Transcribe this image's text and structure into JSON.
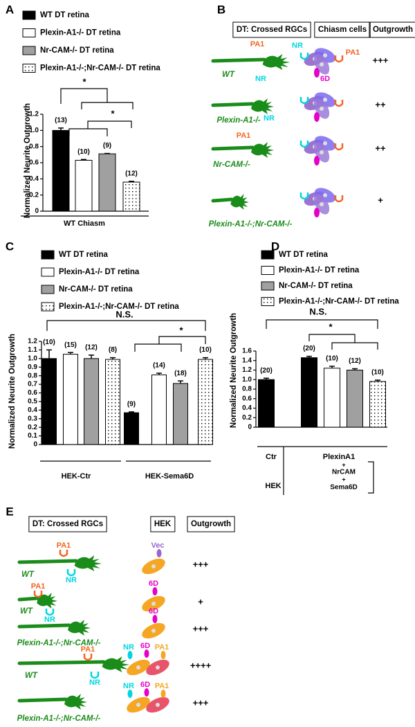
{
  "chart_data": [
    {
      "panel": "A",
      "type": "bar",
      "ylabel": "Normalized Neurite Outgrowth",
      "categories": [
        "WT Chiasm"
      ],
      "ylim": [
        0,
        1.2
      ],
      "yticks": [
        0,
        0.2,
        0.4,
        0.6,
        0.8,
        {
          "value": 1,
          "label": "1.0"
        },
        1.2
      ],
      "series": [
        {
          "name": "WT DT retina",
          "color": "#000000",
          "values": [
            1.0
          ],
          "errors": [
            0.03
          ],
          "n_labels": [
            "(13)"
          ]
        },
        {
          "name": "Plexin-A1-/- DT retina",
          "color": "#ffffff",
          "values": [
            0.63
          ],
          "errors": [
            0.01
          ],
          "n_labels": [
            "(10)"
          ]
        },
        {
          "name": "Nr-CAM-/- DT retina",
          "color": "#a0a0a0",
          "values": [
            0.71
          ],
          "errors": [
            0.005
          ],
          "n_labels": [
            "(9)"
          ]
        },
        {
          "name": "Plexin-A1-/-;Nr-CAM-/- DT retina",
          "color": "#ffffff",
          "pattern": "dots",
          "values": [
            0.36
          ],
          "errors": [
            0.01
          ],
          "n_labels": [
            "(12)"
          ]
        }
      ],
      "annotations": [
        "*",
        "*"
      ]
    },
    {
      "panel": "C",
      "type": "bar",
      "ylabel": "Normalized Neurite Outgrowth",
      "categories": [
        "HEK-Ctr",
        "HEK-Sema6D"
      ],
      "ylim": [
        0,
        1.2
      ],
      "yticks": [
        0,
        0.1,
        0.2,
        0.3,
        0.4,
        0.5,
        0.6,
        0.7,
        0.8,
        0.9,
        {
          "value": 1,
          "label": "1.0"
        },
        1.1,
        1.2
      ],
      "series": [
        {
          "name": "WT DT retina",
          "color": "#000000",
          "values": [
            1.0,
            0.37
          ],
          "errors": [
            0.1,
            0.01
          ],
          "n_labels": [
            "(10)",
            "(9)"
          ]
        },
        {
          "name": "Plexin-A1-/-  DT retina",
          "color": "#ffffff",
          "values": [
            1.05,
            0.81
          ],
          "errors": [
            0.02,
            0.02
          ],
          "n_labels": [
            "(15)",
            "(14)"
          ]
        },
        {
          "name": "Nr-CAM-/- DT retina",
          "color": "#a0a0a0",
          "values": [
            1.0,
            0.71
          ],
          "errors": [
            0.04,
            0.03
          ],
          "n_labels": [
            "(12)",
            "(18)"
          ]
        },
        {
          "name": "Plexin-A1-/-;Nr-CAM-/- DT retina",
          "color": "#ffffff",
          "pattern": "dots",
          "values": [
            0.99,
            0.99
          ],
          "errors": [
            0.02,
            0.02
          ],
          "n_labels": [
            "(8)",
            "(10)"
          ]
        }
      ],
      "annotations": [
        "N.S.",
        "*"
      ]
    },
    {
      "panel": "D",
      "type": "bar",
      "ylabel": "Normalized Neurite Outgrowth",
      "categories": [
        "Ctr",
        "PlexinA1"
      ],
      "ylim": [
        0,
        1.6
      ],
      "yticks": [
        0,
        0.2,
        0.4,
        0.6,
        0.8,
        {
          "value": 1,
          "label": "1.0"
        },
        1.2,
        1.4,
        1.6
      ],
      "series": [
        {
          "name": "WT DT retina",
          "color": "#000000",
          "values": [
            1.0,
            1.46
          ],
          "errors": [
            0.03,
            0.03
          ],
          "n_labels": [
            "(20)",
            "(20)"
          ]
        },
        {
          "name": "Plexin-A1-/-  DT retina",
          "color": "#ffffff",
          "values": [
            null,
            1.24
          ],
          "errors": [
            null,
            0.04
          ],
          "n_labels": [
            null,
            "(10)"
          ]
        },
        {
          "name": "Nr-CAM-/- DT retina",
          "color": "#a0a0a0",
          "values": [
            null,
            1.2
          ],
          "errors": [
            null,
            0.03
          ],
          "n_labels": [
            null,
            "(12)"
          ]
        },
        {
          "name": "Plexin-A1-/-;Nr-CAM-/- DT retina",
          "color": "#ffffff",
          "pattern": "dots",
          "values": [
            null,
            0.96
          ],
          "errors": [
            null,
            0.03
          ],
          "n_labels": [
            null,
            "(10)"
          ]
        }
      ],
      "annotations": [
        "N.S.",
        "*"
      ],
      "group_label": "HEK",
      "cotransfection": [
        "+",
        "NrCAM",
        "+",
        "Sema6D"
      ]
    }
  ],
  "diagram_b": {
    "panel": "B",
    "headers": [
      "DT: Crossed RGCs",
      "Chiasm cells",
      "Outgrowth"
    ],
    "rows": [
      {
        "genotype": "WT",
        "outgrowth": "+++",
        "rgc_labels": [
          {
            "text": "PA1",
            "color": "#f26522"
          },
          {
            "text": "NR",
            "color": "#00d5e0"
          }
        ],
        "cell_labels": [
          {
            "text": "NR",
            "color": "#00d5e0"
          },
          {
            "text": "PA1",
            "color": "#f26522"
          },
          {
            "text": "6D",
            "color": "#e600c8"
          }
        ]
      },
      {
        "genotype": "Plexin-A1-/-",
        "outgrowth": "++",
        "rgc_labels": [
          {
            "text": "NR",
            "color": "#00d5e0"
          }
        ]
      },
      {
        "genotype": "Nr-CAM-/-",
        "outgrowth": "++",
        "rgc_labels": [
          {
            "text": "PA1",
            "color": "#f26522"
          }
        ]
      },
      {
        "genotype": "Plexin-A1-/-;Nr-CAM-/-",
        "outgrowth": "+"
      }
    ]
  },
  "diagram_e": {
    "panel": "E",
    "headers": [
      "DT: Crossed RGCs",
      "HEK",
      "Outgrowth"
    ],
    "rows": [
      {
        "genotype": "WT",
        "outgrowth": "+++",
        "rgc_labels": [
          {
            "text": "PA1",
            "color": "#f26522"
          },
          {
            "text": "NR",
            "color": "#00d5e0"
          }
        ],
        "hek_labels": [
          {
            "text": "Vec",
            "color": "#9966cc"
          }
        ]
      },
      {
        "genotype": "WT",
        "outgrowth": "+",
        "rgc_labels": [
          {
            "text": "PA1",
            "color": "#f26522"
          },
          {
            "text": "NR",
            "color": "#00d5e0"
          }
        ],
        "hek_labels": [
          {
            "text": "6D",
            "color": "#e600c8"
          }
        ]
      },
      {
        "genotype": "Plexin-A1-/-;Nr-CAM-/-",
        "outgrowth": "+++",
        "hek_labels": [
          {
            "text": "6D",
            "color": "#e600c8"
          }
        ]
      },
      {
        "genotype": "WT",
        "outgrowth": "++++",
        "rgc_labels": [
          {
            "text": "PA1",
            "color": "#f26522"
          },
          {
            "text": "NR",
            "color": "#00d5e0"
          }
        ],
        "hek_labels": [
          {
            "text": "NR",
            "color": "#00d5e0"
          },
          {
            "text": "6D",
            "color": "#e600c8"
          },
          {
            "text": "PA1",
            "color": "#f5a623"
          }
        ]
      },
      {
        "genotype": "Plexin-A1-/-;Nr-CAM-/-",
        "outgrowth": "+++",
        "hek_labels": [
          {
            "text": "NR",
            "color": "#00d5e0"
          },
          {
            "text": "6D",
            "color": "#e600c8"
          },
          {
            "text": "PA1",
            "color": "#f5a623"
          }
        ]
      }
    ]
  }
}
